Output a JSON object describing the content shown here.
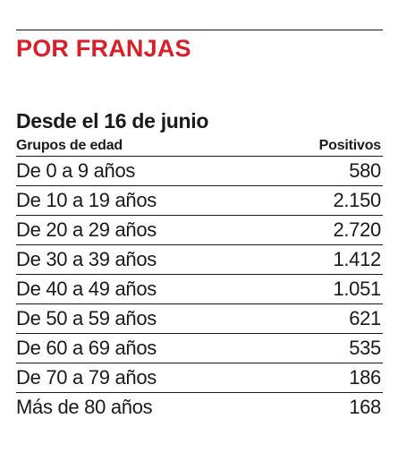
{
  "section_title": "POR FRANJAS",
  "table": {
    "title": "Desde el 16 de junio",
    "headers": {
      "group": "Grupos de edad",
      "positives": "Positivos"
    },
    "rows": [
      {
        "group": "De 0 a 9 años",
        "positives": "580"
      },
      {
        "group": "De 10 a 19 años",
        "positives": "2.150"
      },
      {
        "group": "De 20 a 29 años",
        "positives": "2.720"
      },
      {
        "group": "De 30 a 39 años",
        "positives": "1.412"
      },
      {
        "group": "De 40 a 49 años",
        "positives": "1.051"
      },
      {
        "group": "De 50 a 59 años",
        "positives": "621"
      },
      {
        "group": "De 60 a 69 años",
        "positives": "535"
      },
      {
        "group": "De 70 a 79 años",
        "positives": "186"
      },
      {
        "group": "Más de 80 años",
        "positives": "168"
      }
    ]
  },
  "colors": {
    "accent": "#d9202a",
    "text": "#1a1a1a",
    "background": "#ffffff"
  }
}
